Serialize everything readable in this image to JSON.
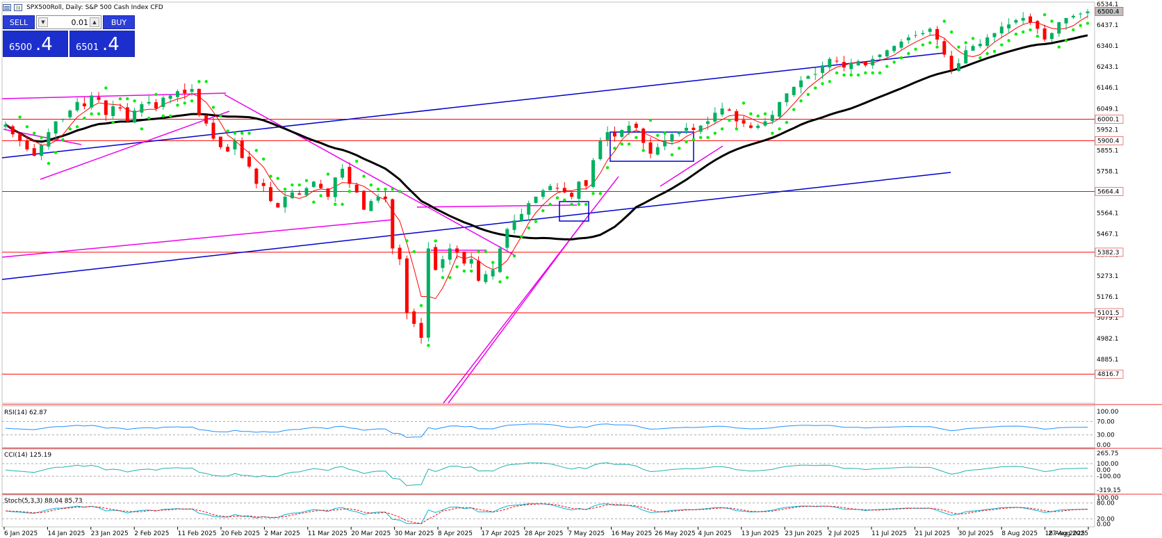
{
  "header": {
    "symbol_title": "SPX500Roll, Daily:  S&P 500 Cash Index CFD"
  },
  "trade_panel": {
    "sell_label": "SELL",
    "buy_label": "BUY",
    "volume": "0.01",
    "sell_price_main": "6500",
    "sell_price_big": ".4",
    "buy_price_main": "6501",
    "buy_price_big": ".4"
  },
  "colors": {
    "bull": "#00b060",
    "bear": "#ff0000",
    "sma_fast": "#ff0000",
    "sma_slow": "#000000",
    "psar": "#00ee00",
    "trendline_blue": "#0000cc",
    "trendline_magenta": "#ee00ee",
    "hline": "#ff0000",
    "rsi": "#1e90ff",
    "cci": "#20b2aa",
    "stoch_main": "#00b4d8",
    "stoch_signal": "#ff0000"
  },
  "price_axis": {
    "ticks": [
      "6534.1",
      "6437.1",
      "6340.1",
      "6243.1",
      "6146.1",
      "6049.1",
      "5952.1",
      "5855.1",
      "5758.1",
      "5664.1",
      "5564.1",
      "5467.1",
      "5370.1",
      "5273.1",
      "5176.1",
      "5079.1",
      "4982.1",
      "4885.1"
    ],
    "current_price": "6500.4",
    "hline_labels": [
      "6000.1",
      "5900.4",
      "5664.4",
      "5382.3",
      "5101.5",
      "4816.7"
    ]
  },
  "rsi": {
    "label": "RSI(14) 62.87",
    "ticks": [
      "100.00",
      "70.00",
      "30.00",
      "0.00"
    ]
  },
  "cci": {
    "label": "CCI(14) 125.19",
    "ticks": [
      "265.75",
      "100.00",
      "0.00",
      "-100.00",
      "-319.15"
    ]
  },
  "stoch": {
    "label": "Stoch(5,3,3) 88.04 85.73",
    "ticks": [
      "100.00",
      "80.00",
      "20.00",
      "0.00"
    ]
  },
  "date_axis": {
    "labels": [
      "6 Jan 2025",
      "14 Jan 2025",
      "23 Jan 2025",
      "2 Feb 2025",
      "11 Feb 2025",
      "20 Feb 2025",
      "2 Mar 2025",
      "11 Mar 2025",
      "20 Mar 2025",
      "30 Mar 2025",
      "8 Apr 2025",
      "17 Apr 2025",
      "28 Apr 2025",
      "7 May 2025",
      "16 May 2025",
      "26 May 2025",
      "4 Jun 2025",
      "13 Jun 2025",
      "23 Jun 2025",
      "2 Jul 2025",
      "11 Jul 2025",
      "21 Jul 2025",
      "30 Jul 2025",
      "8 Aug 2025",
      "18 Aug 2025",
      "27 Aug 2025"
    ]
  },
  "chart_data": {
    "type": "candlestick",
    "symbol": "SPX500Roll",
    "timeframe": "Daily",
    "close_series": [
      5975,
      5930,
      5900,
      5860,
      5830,
      5880,
      5940,
      5990,
      6000,
      6040,
      6080,
      6060,
      6110,
      6090,
      6020,
      6060,
      6050,
      5990,
      6040,
      6070,
      6080,
      6050,
      6100,
      6110,
      6130,
      6120,
      6140,
      6020,
      5980,
      5910,
      5870,
      5850,
      5900,
      5820,
      5780,
      5700,
      5690,
      5620,
      5590,
      5640,
      5660,
      5650,
      5680,
      5710,
      5680,
      5640,
      5730,
      5770,
      5700,
      5660,
      5580,
      5620,
      5640,
      5630,
      5400,
      5350,
      5100,
      5050,
      4985,
      5400,
      5300,
      5350,
      5400,
      5380,
      5330,
      5350,
      5250,
      5280,
      5300,
      5400,
      5490,
      5530,
      5560,
      5610,
      5640,
      5670,
      5690,
      5680,
      5660,
      5640,
      5710,
      5690,
      5810,
      5900,
      5940,
      5920,
      5950,
      5970,
      5960,
      5890,
      5840,
      5870,
      5900,
      5930,
      5940,
      5960,
      5950,
      5970,
      5990,
      6030,
      6050,
      6040,
      5990,
      5980,
      5960,
      5970,
      5990,
      6020,
      6080,
      6120,
      6150,
      6180,
      6200,
      6210,
      6250,
      6280,
      6270,
      6240,
      6260,
      6270,
      6250,
      6280,
      6300,
      6320,
      6340,
      6360,
      6380,
      6390,
      6400,
      6420,
      6370,
      6300,
      6230,
      6260,
      6320,
      6340,
      6350,
      6380,
      6400,
      6430,
      6440,
      6460,
      6470,
      6450,
      6420,
      6370,
      6400,
      6450,
      6470,
      6480,
      6490,
      6500
    ]
  }
}
